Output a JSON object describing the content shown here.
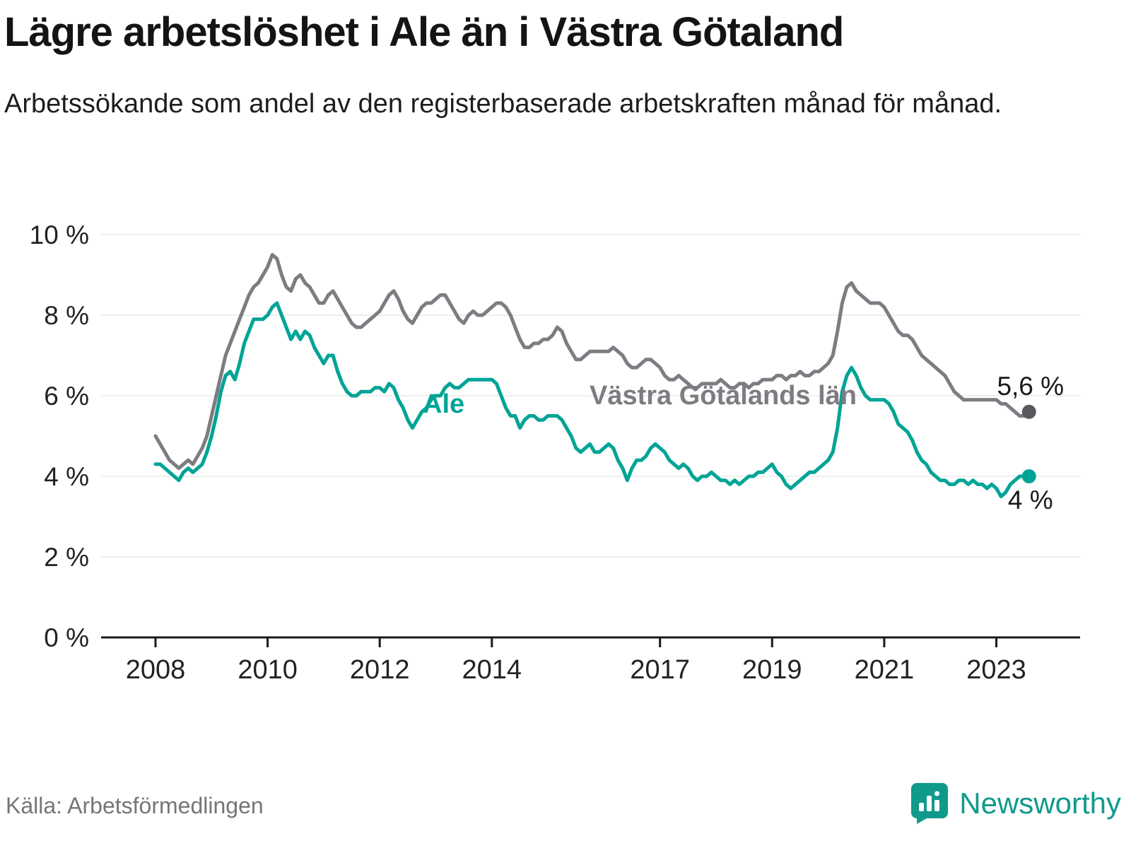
{
  "title": "Lägre arbetslöshet i Ale än i Västra Götaland",
  "subtitle": "Arbetssökande som andel av den registerbaserade arbetskraften månad för månad.",
  "source": "Källa: Arbetsförmedlingen",
  "branding": {
    "name": "Newsworthy",
    "color": "#109a8c"
  },
  "chart_data": {
    "type": "line",
    "x_start_year": 2008,
    "x_step": "1 month",
    "ylim": [
      0,
      10
    ],
    "grid": "very light horizontal",
    "yticks": [
      {
        "v": 0,
        "label": "0 %"
      },
      {
        "v": 2,
        "label": "2 %"
      },
      {
        "v": 4,
        "label": "4 %"
      },
      {
        "v": 6,
        "label": "6 %"
      },
      {
        "v": 8,
        "label": "8 %"
      },
      {
        "v": 10,
        "label": "10 %"
      }
    ],
    "xticks": [
      {
        "v": 2008,
        "label": "2008"
      },
      {
        "v": 2010,
        "label": "2010"
      },
      {
        "v": 2012,
        "label": "2012"
      },
      {
        "v": 2014,
        "label": "2014"
      },
      {
        "v": 2017,
        "label": "2017"
      },
      {
        "v": 2019,
        "label": "2019"
      },
      {
        "v": 2021,
        "label": "2021"
      },
      {
        "v": 2023,
        "label": "2023"
      }
    ],
    "series": [
      {
        "name": "Västra Götalands län",
        "color": "#7e7c82",
        "dot_color": "#5b5960",
        "end_label": "5,6 %",
        "values": [
          5.0,
          4.8,
          4.6,
          4.4,
          4.3,
          4.2,
          4.3,
          4.4,
          4.3,
          4.5,
          4.7,
          5.0,
          5.5,
          6.0,
          6.5,
          7.0,
          7.3,
          7.6,
          7.9,
          8.2,
          8.5,
          8.7,
          8.8,
          9.0,
          9.2,
          9.5,
          9.4,
          9.0,
          8.7,
          8.6,
          8.9,
          9.0,
          8.8,
          8.7,
          8.5,
          8.3,
          8.3,
          8.5,
          8.6,
          8.4,
          8.2,
          8.0,
          7.8,
          7.7,
          7.7,
          7.8,
          7.9,
          8.0,
          8.1,
          8.3,
          8.5,
          8.6,
          8.4,
          8.1,
          7.9,
          7.8,
          8.0,
          8.2,
          8.3,
          8.3,
          8.4,
          8.5,
          8.5,
          8.3,
          8.1,
          7.9,
          7.8,
          8.0,
          8.1,
          8.0,
          8.0,
          8.1,
          8.2,
          8.3,
          8.3,
          8.2,
          8.0,
          7.7,
          7.4,
          7.2,
          7.2,
          7.3,
          7.3,
          7.4,
          7.4,
          7.5,
          7.7,
          7.6,
          7.3,
          7.1,
          6.9,
          6.9,
          7.0,
          7.1,
          7.1,
          7.1,
          7.1,
          7.1,
          7.2,
          7.1,
          7.0,
          6.8,
          6.7,
          6.7,
          6.8,
          6.9,
          6.9,
          6.8,
          6.7,
          6.5,
          6.4,
          6.4,
          6.5,
          6.4,
          6.3,
          6.2,
          6.2,
          6.3,
          6.3,
          6.3,
          6.3,
          6.4,
          6.3,
          6.2,
          6.2,
          6.3,
          6.3,
          6.2,
          6.3,
          6.3,
          6.4,
          6.4,
          6.4,
          6.5,
          6.5,
          6.4,
          6.5,
          6.5,
          6.6,
          6.5,
          6.5,
          6.6,
          6.6,
          6.7,
          6.8,
          7.0,
          7.6,
          8.3,
          8.7,
          8.8,
          8.6,
          8.5,
          8.4,
          8.3,
          8.3,
          8.3,
          8.2,
          8.0,
          7.8,
          7.6,
          7.5,
          7.5,
          7.4,
          7.2,
          7.0,
          6.9,
          6.8,
          6.7,
          6.6,
          6.5,
          6.3,
          6.1,
          6.0,
          5.9,
          5.9,
          5.9,
          5.9,
          5.9,
          5.9,
          5.9,
          5.9,
          5.8,
          5.8,
          5.7,
          5.6,
          5.5,
          5.5,
          5.6
        ]
      },
      {
        "name": "Ale",
        "color": "#00a496",
        "dot_color": "#00a496",
        "end_label": "4 %",
        "values": [
          4.3,
          4.3,
          4.2,
          4.1,
          4.0,
          3.9,
          4.1,
          4.2,
          4.1,
          4.2,
          4.3,
          4.6,
          5.0,
          5.5,
          6.1,
          6.5,
          6.6,
          6.4,
          6.8,
          7.3,
          7.6,
          7.9,
          7.9,
          7.9,
          8.0,
          8.2,
          8.3,
          8.0,
          7.7,
          7.4,
          7.6,
          7.4,
          7.6,
          7.5,
          7.2,
          7.0,
          6.8,
          7.0,
          7.0,
          6.6,
          6.3,
          6.1,
          6.0,
          6.0,
          6.1,
          6.1,
          6.1,
          6.2,
          6.2,
          6.1,
          6.3,
          6.2,
          5.9,
          5.7,
          5.4,
          5.2,
          5.4,
          5.6,
          5.7,
          5.9,
          6.0,
          6.0,
          6.2,
          6.3,
          6.2,
          6.2,
          6.3,
          6.4,
          6.4,
          6.4,
          6.4,
          6.4,
          6.4,
          6.3,
          6.0,
          5.7,
          5.5,
          5.5,
          5.2,
          5.4,
          5.5,
          5.5,
          5.4,
          5.4,
          5.5,
          5.5,
          5.5,
          5.4,
          5.2,
          5.0,
          4.7,
          4.6,
          4.7,
          4.8,
          4.6,
          4.6,
          4.7,
          4.8,
          4.7,
          4.4,
          4.2,
          3.9,
          4.2,
          4.4,
          4.4,
          4.5,
          4.7,
          4.8,
          4.7,
          4.6,
          4.4,
          4.3,
          4.2,
          4.3,
          4.2,
          4.0,
          3.9,
          4.0,
          4.0,
          4.1,
          4.0,
          3.9,
          3.9,
          3.8,
          3.9,
          3.8,
          3.9,
          4.0,
          4.0,
          4.1,
          4.1,
          4.2,
          4.3,
          4.1,
          4.0,
          3.8,
          3.7,
          3.8,
          3.9,
          4.0,
          4.1,
          4.1,
          4.2,
          4.3,
          4.4,
          4.6,
          5.2,
          6.1,
          6.5,
          6.7,
          6.5,
          6.2,
          6.0,
          5.9,
          5.9,
          5.9,
          5.9,
          5.8,
          5.6,
          5.3,
          5.2,
          5.1,
          4.9,
          4.6,
          4.4,
          4.3,
          4.1,
          4.0,
          3.9,
          3.9,
          3.8,
          3.8,
          3.9,
          3.9,
          3.8,
          3.9,
          3.8,
          3.8,
          3.7,
          3.8,
          3.7,
          3.5,
          3.6,
          3.8,
          3.9,
          4.0,
          4.0,
          4.0
        ]
      }
    ]
  }
}
